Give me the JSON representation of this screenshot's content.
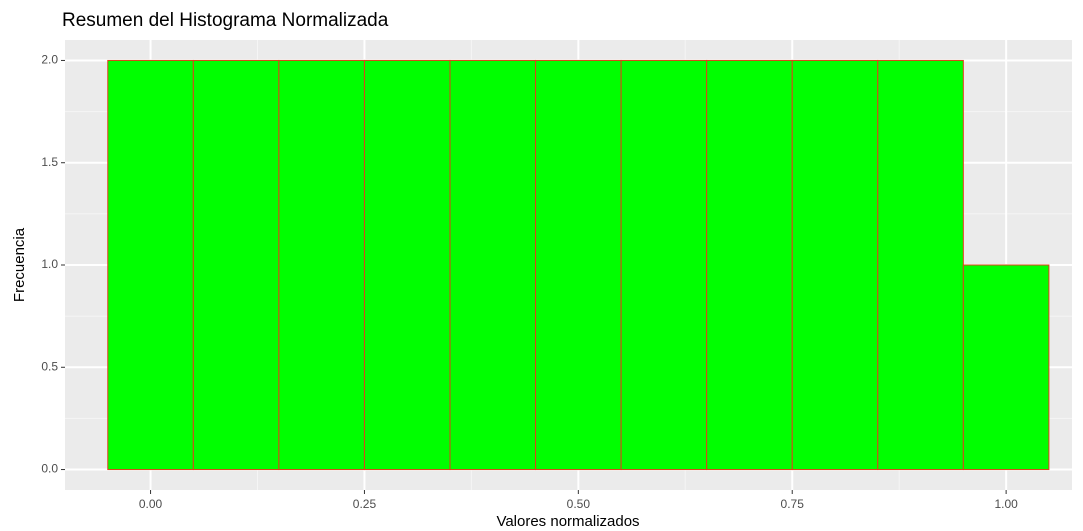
{
  "chart_data": {
    "type": "histogram",
    "title": "Resumen del Histograma Normalizada",
    "x_label": "Valores normalizados",
    "y_label": "Frecuencia",
    "bins": [
      -0.05,
      0.05,
      0.15,
      0.25,
      0.35,
      0.45,
      0.55,
      0.65,
      0.75,
      0.85,
      0.95,
      1.05
    ],
    "counts": [
      2,
      2,
      2,
      2,
      2,
      2,
      2,
      2,
      2,
      2,
      1
    ],
    "color": "#00ff00",
    "edge_color": "#e0401a",
    "xlim": [
      -0.1,
      1.077
    ],
    "ylim": [
      -0.1,
      2.1
    ],
    "xticks": [
      {
        "value": 0,
        "label": "0.00"
      },
      {
        "value": 0.25,
        "label": "0.25"
      },
      {
        "value": 0.5,
        "label": "0.50"
      },
      {
        "value": 0.75,
        "label": "0.75"
      },
      {
        "value": 1,
        "label": "1.00"
      }
    ],
    "yticks": [
      {
        "value": 0,
        "label": "0.0"
      },
      {
        "value": 0.5,
        "label": "0.5"
      },
      {
        "value": 1,
        "label": "1.0"
      },
      {
        "value": 1.5,
        "label": "1.5"
      },
      {
        "value": 2,
        "label": "2.0"
      }
    ],
    "grid": true,
    "minor_grid": true
  }
}
